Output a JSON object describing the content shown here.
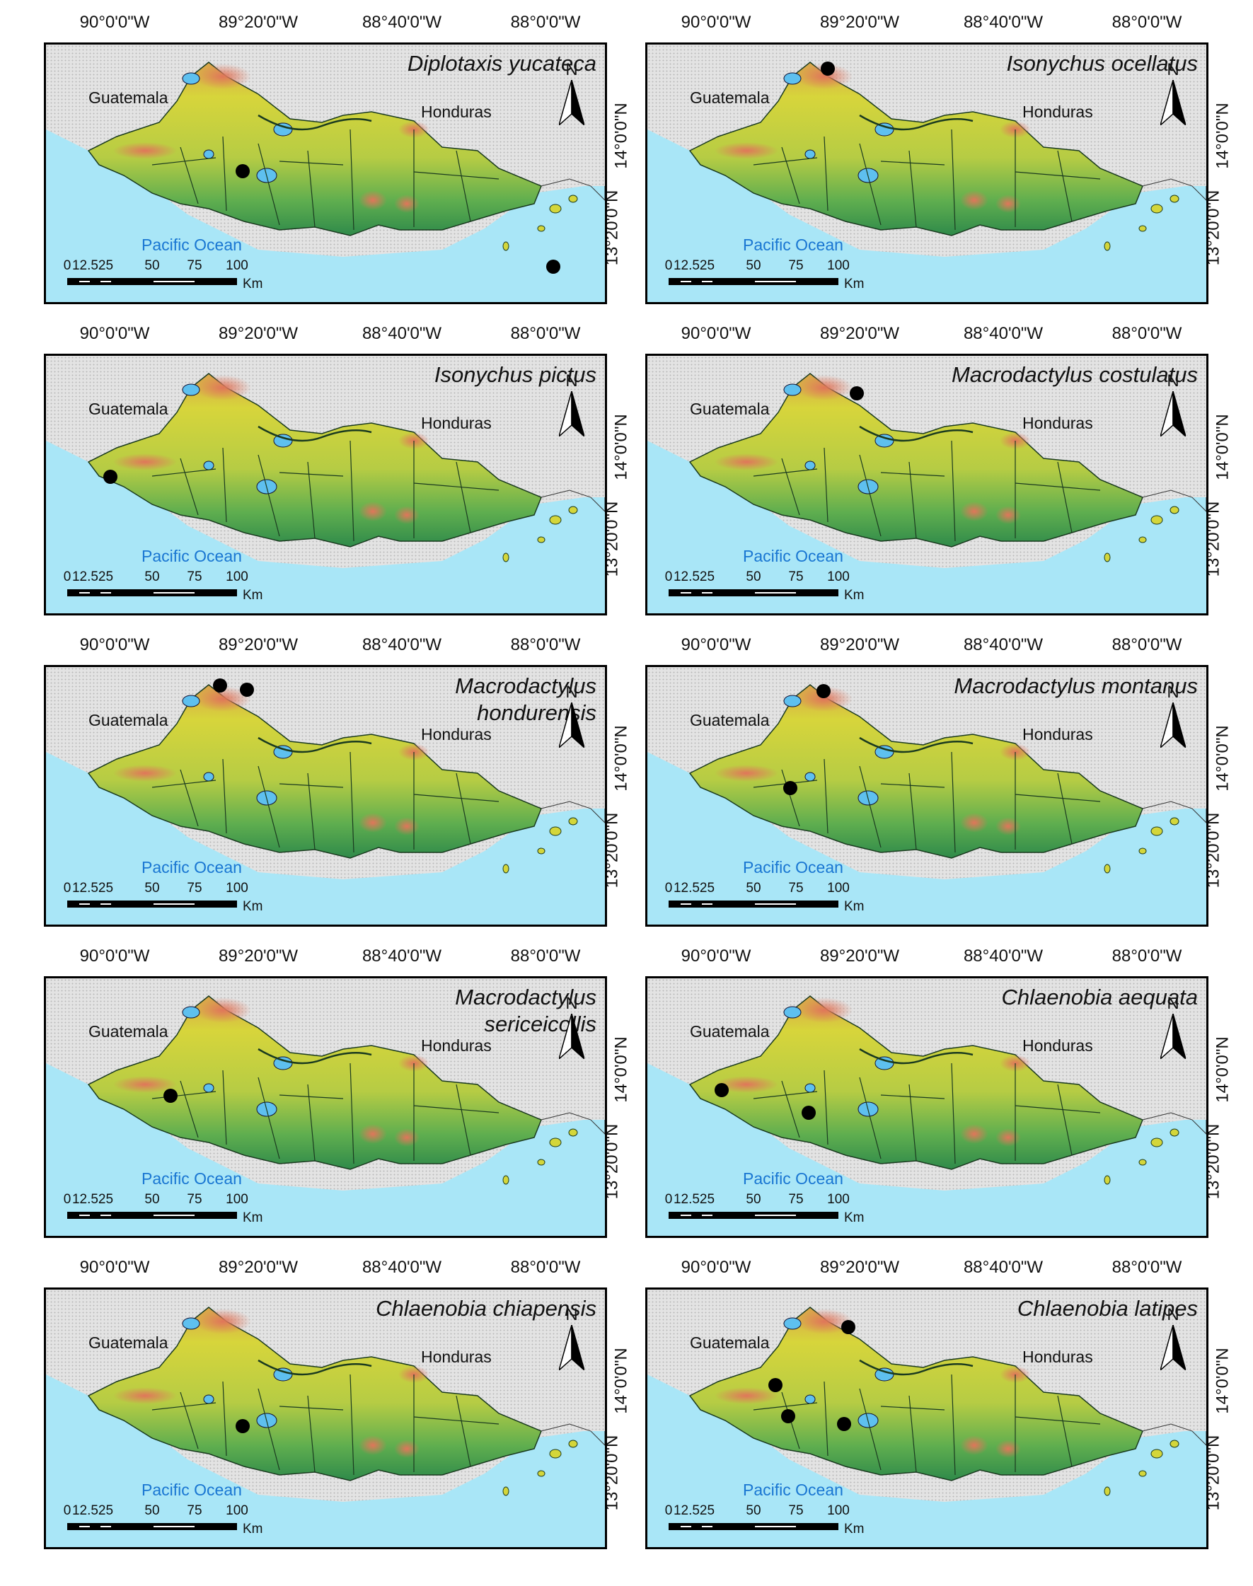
{
  "lon_labels": [
    "90°0'0\"W",
    "89°20'0\"W",
    "88°40'0\"W",
    "88°0'0\"W"
  ],
  "lat_labels": [
    "14°0'0\"N",
    "13°20'0\"N"
  ],
  "labels": {
    "guatemala": "Guatemala",
    "honduras": "Honduras",
    "ocean": "Pacific Ocean",
    "north": "N",
    "km": "Km"
  },
  "scale_ticks": [
    "0",
    "12.525",
    "50",
    "75",
    "100"
  ],
  "colors": {
    "land_high": "#e0765a",
    "land_mid": "#d4d63a",
    "land_low": "#2f8a4a",
    "ocean": "#a9e6f7",
    "lake": "#5ec0ef",
    "outside": "#e3e3e3"
  },
  "panels": [
    {
      "species": [
        "Diplotaxis yucateca"
      ],
      "records": [
        {
          "lon": -89.3,
          "lat": 13.8
        },
        {
          "lon": -87.8,
          "lat": 13.29
        }
      ]
    },
    {
      "species": [
        "Isonychus ocellatus"
      ],
      "records": [
        {
          "lon": -89.38,
          "lat": 14.35
        }
      ]
    },
    {
      "species": [
        "Isonychus pictus"
      ],
      "records": [
        {
          "lon": -89.94,
          "lat": 13.83
        }
      ]
    },
    {
      "species": [
        "Macrodactylus costulatus"
      ],
      "records": [
        {
          "lon": -89.24,
          "lat": 14.28
        }
      ]
    },
    {
      "species": [
        "Macrodactylus",
        "hondurensis"
      ],
      "records": [
        {
          "lon": -89.41,
          "lat": 14.38
        },
        {
          "lon": -89.28,
          "lat": 14.36
        }
      ]
    },
    {
      "species": [
        "Macrodactylus montanus"
      ],
      "records": [
        {
          "lon": -89.4,
          "lat": 14.35
        },
        {
          "lon": -89.56,
          "lat": 13.83
        }
      ]
    },
    {
      "species": [
        "Macrodactylus",
        "sericeicollis"
      ],
      "records": [
        {
          "lon": -89.65,
          "lat": 13.85
        }
      ]
    },
    {
      "species": [
        "Chlaenobia aequata"
      ],
      "records": [
        {
          "lon": -89.89,
          "lat": 13.88
        },
        {
          "lon": -89.47,
          "lat": 13.76
        }
      ]
    },
    {
      "species": [
        "Chlaenobia chiapensis"
      ],
      "records": [
        {
          "lon": -89.3,
          "lat": 13.75
        }
      ]
    },
    {
      "species": [
        "Chlaenobia latipes"
      ],
      "records": [
        {
          "lon": -89.28,
          "lat": 14.28
        },
        {
          "lon": -89.63,
          "lat": 13.97
        },
        {
          "lon": -89.57,
          "lat": 13.8
        },
        {
          "lon": -89.3,
          "lat": 13.76
        }
      ]
    }
  ]
}
